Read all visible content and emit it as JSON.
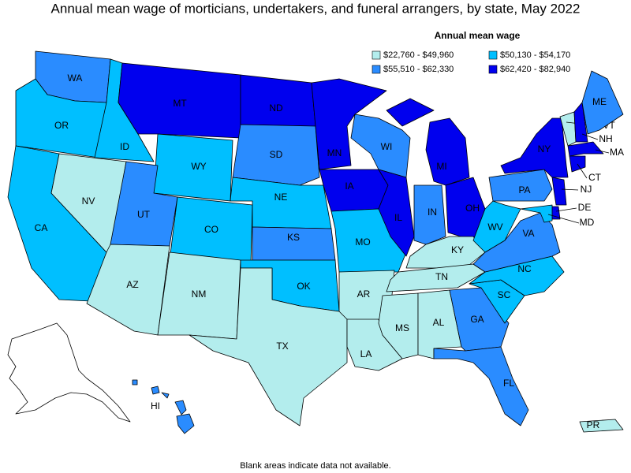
{
  "title": "Annual mean wage of morticians, undertakers, and funeral arrangers, by state, May 2022",
  "legend": {
    "title": "Annual mean wage",
    "items": [
      {
        "label": "$22,760 - $49,960",
        "color": "#b3eded"
      },
      {
        "label": "$50,130 - $54,170",
        "color": "#00bfff"
      },
      {
        "label": "$55,510 - $62,330",
        "color": "#2a8cff"
      },
      {
        "label": "$62,420 - $82,940",
        "color": "#0000ee"
      }
    ]
  },
  "states": [
    {
      "label": "WA",
      "class": 2
    },
    {
      "label": "OR",
      "class": 1
    },
    {
      "label": "CA",
      "class": 1
    },
    {
      "label": "ID",
      "class": 1
    },
    {
      "label": "NV",
      "class": 0
    },
    {
      "label": "MT",
      "class": 3
    },
    {
      "label": "WY",
      "class": 1
    },
    {
      "label": "UT",
      "class": 2
    },
    {
      "label": "AZ",
      "class": 0
    },
    {
      "label": "CO",
      "class": 1
    },
    {
      "label": "NM",
      "class": 0
    },
    {
      "label": "ND",
      "class": 3
    },
    {
      "label": "SD",
      "class": 2
    },
    {
      "label": "NE",
      "class": 1
    },
    {
      "label": "KS",
      "class": 2
    },
    {
      "label": "OK",
      "class": 1
    },
    {
      "label": "TX",
      "class": 0
    },
    {
      "label": "MN",
      "class": 3
    },
    {
      "label": "IA",
      "class": 3
    },
    {
      "label": "WI",
      "class": 2
    },
    {
      "label": "MO",
      "class": 1
    },
    {
      "label": "AR",
      "class": 0
    },
    {
      "label": "LA",
      "class": 0
    },
    {
      "label": "IL",
      "class": 3
    },
    {
      "label": "MI",
      "class": 3
    },
    {
      "label": "IN",
      "class": 2
    },
    {
      "label": "OH",
      "class": 3
    },
    {
      "label": "KY",
      "class": 0
    },
    {
      "label": "TN",
      "class": 0
    },
    {
      "label": "MS",
      "class": 0
    },
    {
      "label": "AL",
      "class": 0
    },
    {
      "label": "GA",
      "class": 2
    },
    {
      "label": "FL",
      "class": 2
    },
    {
      "label": "SC",
      "class": 1
    },
    {
      "label": "NC",
      "class": 1
    },
    {
      "label": "VA",
      "class": 2
    },
    {
      "label": "WV",
      "class": 1
    },
    {
      "label": "PA",
      "class": 2
    },
    {
      "label": "NY",
      "class": 3
    },
    {
      "label": "VT",
      "class": 0
    },
    {
      "label": "NH",
      "class": 3
    },
    {
      "label": "ME",
      "class": 2
    },
    {
      "label": "MA",
      "class": 3
    },
    {
      "label": "CT",
      "class": 3
    },
    {
      "label": "NJ",
      "class": 3
    },
    {
      "label": "DE",
      "class": 3
    },
    {
      "label": "MD",
      "class": 1
    },
    {
      "label": "HI",
      "class": 2
    },
    {
      "label": "PR",
      "class": 0
    }
  ],
  "footnote": "Blank areas indicate data not available."
}
